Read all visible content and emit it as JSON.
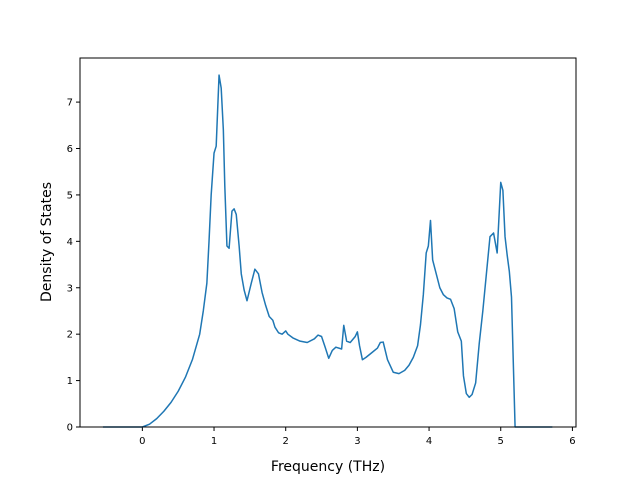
{
  "chart_data": {
    "type": "line",
    "title": "",
    "xlabel": "Frequency (THz)",
    "ylabel": "Density of States",
    "xlim": [
      -0.87,
      6.05
    ],
    "ylim": [
      0,
      7.95
    ],
    "xticks": [
      0,
      1,
      2,
      3,
      4,
      5,
      6
    ],
    "yticks": [
      0,
      1,
      2,
      3,
      4,
      5,
      6,
      7
    ],
    "grid": false,
    "legend": "none",
    "line_color": "#1f77b4",
    "series": [
      {
        "x": [
          -0.55,
          -0.3,
          0.0,
          0.1,
          0.2,
          0.3,
          0.4,
          0.5,
          0.6,
          0.7,
          0.8,
          0.85,
          0.9,
          0.93,
          0.96,
          1.0,
          1.03,
          1.07,
          1.1,
          1.13,
          1.15,
          1.18,
          1.21,
          1.25,
          1.28,
          1.31,
          1.35,
          1.38,
          1.42,
          1.46,
          1.52,
          1.57,
          1.62,
          1.67,
          1.72,
          1.77,
          1.82,
          1.85,
          1.9,
          1.95,
          2.0,
          2.03,
          2.1,
          2.2,
          2.3,
          2.4,
          2.45,
          2.5,
          2.55,
          2.6,
          2.65,
          2.7,
          2.78,
          2.81,
          2.85,
          2.9,
          2.97,
          3.0,
          3.03,
          3.07,
          3.12,
          3.2,
          3.28,
          3.32,
          3.36,
          3.42,
          3.5,
          3.58,
          3.66,
          3.72,
          3.78,
          3.84,
          3.88,
          3.92,
          3.96,
          3.99,
          4.02,
          4.05,
          4.1,
          4.15,
          4.2,
          4.25,
          4.3,
          4.35,
          4.4,
          4.45,
          4.48,
          4.52,
          4.56,
          4.6,
          4.65,
          4.7,
          4.75,
          4.8,
          4.85,
          4.9,
          4.95,
          5.0,
          5.03,
          5.06,
          5.09,
          5.12,
          5.15,
          5.2,
          5.4,
          5.72
        ],
        "y": [
          0.0,
          0.0,
          0.0,
          0.06,
          0.18,
          0.34,
          0.53,
          0.77,
          1.07,
          1.46,
          2.0,
          2.5,
          3.1,
          4.0,
          5.0,
          5.9,
          6.05,
          7.58,
          7.3,
          6.4,
          5.2,
          3.9,
          3.85,
          4.65,
          4.7,
          4.58,
          3.9,
          3.3,
          2.95,
          2.72,
          3.1,
          3.4,
          3.3,
          2.9,
          2.62,
          2.38,
          2.3,
          2.15,
          2.03,
          2.0,
          2.07,
          2.0,
          1.92,
          1.85,
          1.82,
          1.9,
          1.98,
          1.95,
          1.72,
          1.48,
          1.65,
          1.72,
          1.68,
          2.19,
          1.85,
          1.82,
          1.95,
          2.05,
          1.75,
          1.45,
          1.5,
          1.6,
          1.7,
          1.82,
          1.83,
          1.45,
          1.18,
          1.15,
          1.22,
          1.33,
          1.5,
          1.75,
          2.2,
          2.85,
          3.75,
          3.9,
          4.45,
          3.6,
          3.3,
          3.0,
          2.85,
          2.78,
          2.75,
          2.55,
          2.05,
          1.85,
          1.1,
          0.72,
          0.64,
          0.7,
          0.95,
          1.8,
          2.5,
          3.3,
          4.1,
          4.18,
          3.75,
          5.27,
          5.1,
          4.1,
          3.7,
          3.35,
          2.8,
          0.0,
          0.0,
          0.0
        ]
      }
    ]
  }
}
